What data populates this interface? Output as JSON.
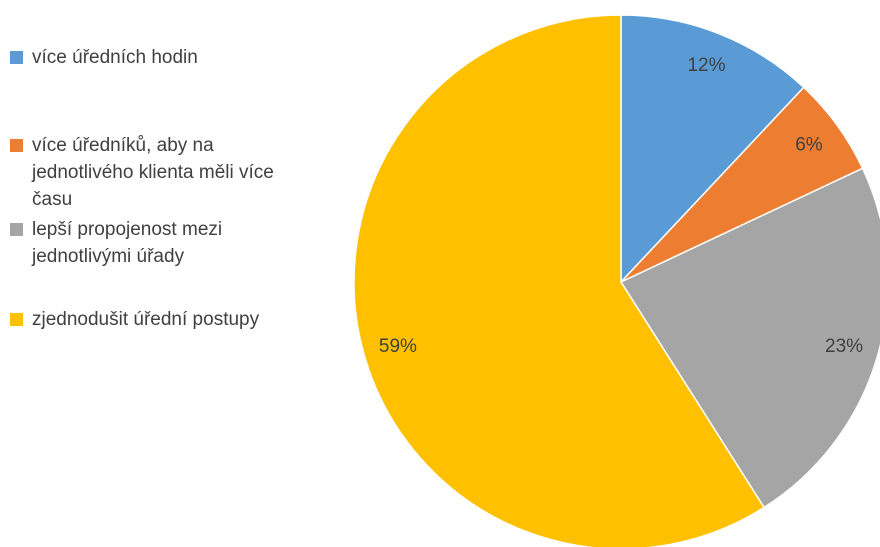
{
  "chart_data": {
    "type": "pie",
    "categories": [
      "více úředních hodin",
      "více úředníků, aby na jednotlivého klienta měli více času",
      "lepší propojenost mezi jednotlivými úřady",
      "zjednodušit úřední postupy"
    ],
    "values": [
      12,
      6,
      23,
      59
    ],
    "value_labels": [
      "12%",
      "6%",
      "23%",
      "59%"
    ],
    "colors": [
      "#5b9bd5",
      "#ed7d31",
      "#a5a5a5",
      "#ffc000"
    ],
    "legend": "left"
  }
}
